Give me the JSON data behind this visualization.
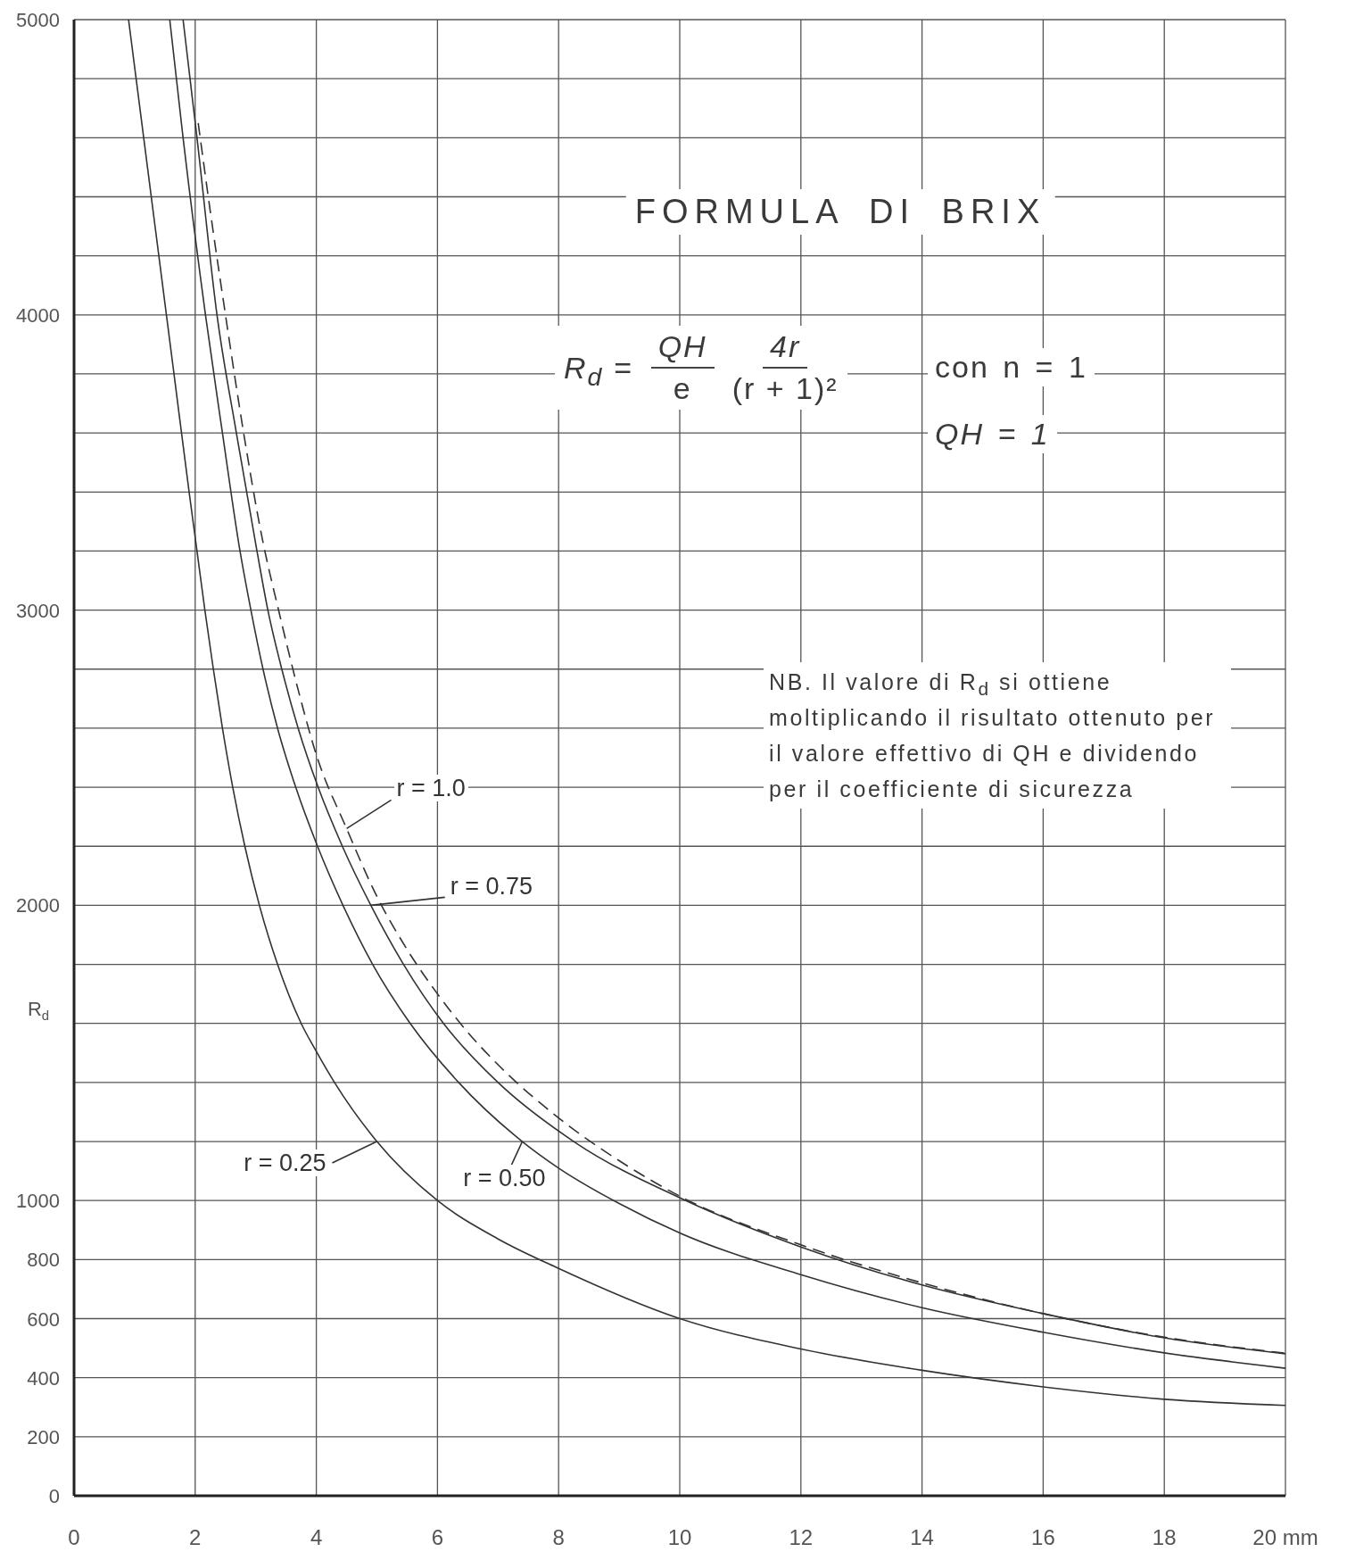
{
  "chart_data": {
    "type": "line",
    "title": "FORMULA DI BRIX",
    "ylabel": "R$_{d}$",
    "annotations": [
      "R$_{d}$ =",
      "QH",
      "e",
      "4r",
      "(r + 1)²",
      "con n = 1",
      "QH = 1",
      "NB. Il valore di R$_{d}$ si ottiene moltiplicando il risultato ottenuto per il valore effettivo di QH e dividendo per il coefficiente di sicurezza"
    ],
    "xlim": [
      0,
      20
    ],
    "xticks": [
      0,
      2,
      4,
      6,
      8,
      10,
      12,
      14,
      16,
      18,
      {
        "value": 20,
        "label": "20 mm"
      }
    ],
    "ylim": [
      0,
      5000
    ],
    "yticks": [
      0,
      200,
      400,
      600,
      800,
      1000,
      {
        "value": 1200,
        "label": null
      },
      {
        "value": 1400,
        "label": null
      },
      {
        "value": 1600,
        "label": null
      },
      {
        "value": 1800,
        "label": null
      },
      2000,
      {
        "value": 2200,
        "label": null
      },
      {
        "value": 2400,
        "label": null
      },
      {
        "value": 2600,
        "label": null
      },
      {
        "value": 2800,
        "label": null
      },
      3000,
      {
        "value": 3200,
        "label": null
      },
      {
        "value": 3400,
        "label": null
      },
      {
        "value": 3600,
        "label": null
      },
      {
        "value": 3800,
        "label": null
      },
      4000,
      {
        "value": 4200,
        "label": null
      },
      {
        "value": 4400,
        "label": null
      },
      {
        "value": 4600,
        "label": null
      },
      {
        "value": 4800,
        "label": null
      },
      5000
    ],
    "grid": true,
    "series": [
      {
        "name": "r = 0.25",
        "color": "#333333",
        "x": [
          0.9,
          1.15,
          1.4,
          1.65,
          1.9,
          2.03,
          2.16,
          2.3,
          2.45,
          2.62,
          2.82,
          3.06,
          3.36,
          3.75,
          4,
          4.3,
          5,
          6,
          7,
          8,
          10,
          12,
          14,
          16,
          18,
          20
        ],
        "values": [
          5000,
          4600,
          4200,
          3800,
          3400,
          3200,
          3000,
          2800,
          2600,
          2400,
          2200,
          2000,
          1800,
          1600,
          1505,
          1400,
          1200,
          1000,
          870,
          770,
          600,
          497,
          425,
          369,
          327,
          306
        ]
      },
      {
        "name": "r = 0.50",
        "color": "#333333",
        "x": [
          1.58,
          1.8,
          2.17,
          2.45,
          2.74,
          2.92,
          3.12,
          3.36,
          3.66,
          4.02,
          4.44,
          4.93,
          5.55,
          6.35,
          7.4,
          8,
          9,
          10,
          12,
          14,
          16,
          18,
          20
        ],
        "values": [
          5000,
          4600,
          4000,
          3600,
          3200,
          3000,
          2800,
          2600,
          2400,
          2200,
          2000,
          1800,
          1600,
          1400,
          1200,
          1110,
          990,
          890,
          749,
          637,
          554,
          484,
          432
        ]
      },
      {
        "name": "r = 0.75",
        "color": "#333333",
        "x": [
          1.8,
          2.03,
          2.36,
          2.68,
          3.02,
          3.2,
          3.43,
          3.7,
          4.03,
          4.43,
          4.9,
          5.44,
          6.1,
          7,
          8.25,
          10.1,
          12,
          14,
          16,
          18,
          20
        ],
        "values": [
          5000,
          4600,
          4000,
          3600,
          3200,
          3000,
          2800,
          2600,
          2400,
          2200,
          2000,
          1800,
          1600,
          1400,
          1200,
          1000,
          843,
          714,
          617,
          535,
          481
        ]
      },
      {
        "name": "r = 1.0",
        "color": "#333333",
        "line_style": "dashed",
        "x": [
          2.05,
          2.25,
          2.5,
          2.8,
          3.1,
          3.4,
          3.7,
          4,
          4.5,
          5,
          5.5,
          6,
          6.5,
          7,
          8,
          9,
          10,
          12,
          14,
          16,
          18,
          20
        ],
        "values": [
          4650,
          4350,
          4000,
          3600,
          3250,
          2980,
          2730,
          2510,
          2260,
          2030,
          1850,
          1700,
          1570,
          1460,
          1280,
          1135,
          1015,
          850,
          721,
          617,
          537,
          483
        ]
      }
    ]
  }
}
